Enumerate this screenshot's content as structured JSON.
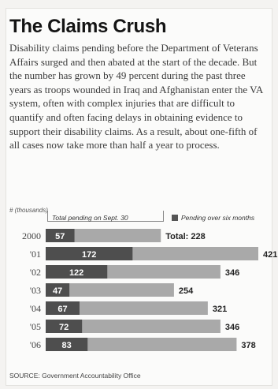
{
  "chart_data": {
    "type": "bar",
    "title": "The Claims Crush",
    "description": "Disability claims pending before the Department of Veterans Affairs surged and then abated at the start of the decade. But the number has grown by 49 percent during the past three years as troops wounded in Iraq and Afghanistan enter the VA system, often with complex injuries that are difficult to quantify and often facing delays in obtaining evidence to support their disability claims. As a result, about one-fifth of all cases now take more than half a year to process.",
    "units": "# (thousands)",
    "categories": [
      "2000",
      "'01",
      "'02",
      "'03",
      "'04",
      "'05",
      "'06"
    ],
    "series": [
      {
        "name": "Total pending on Sept. 30",
        "values": [
          228,
          421,
          346,
          254,
          321,
          346,
          378
        ]
      },
      {
        "name": "Pending over six months",
        "values": [
          57,
          172,
          122,
          47,
          67,
          72,
          83
        ]
      }
    ],
    "total_labels": [
      "Total: 228",
      "421",
      "346",
      "254",
      "321",
      "346",
      "378"
    ],
    "orientation": "horizontal",
    "xlim": [
      0,
      421
    ],
    "grid": false,
    "colors": {
      "total": "#a9a9a9",
      "pending": "#4e4e4e"
    },
    "source": "SOURCE: Government Accountability Office"
  }
}
